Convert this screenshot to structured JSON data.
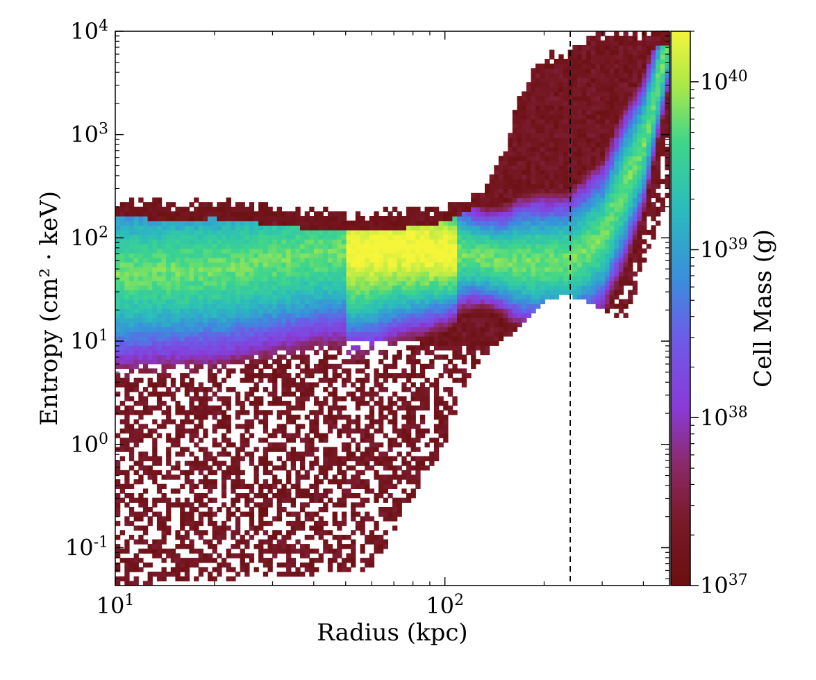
{
  "chart_data": {
    "type": "heatmap",
    "title": "",
    "xlabel": "Radius  (kpc)",
    "ylabel": "Entropy  (cm² · keV)",
    "colorbar_label": "Cell Mass  (g)",
    "x_scale": "log",
    "y_scale": "log",
    "xlim": [
      10,
      480
    ],
    "ylim": [
      0.043,
      10000
    ],
    "x_ticks": [
      {
        "value": 10,
        "base": "10",
        "exp": "1"
      },
      {
        "value": 100,
        "base": "10",
        "exp": "2"
      }
    ],
    "y_ticks": [
      {
        "value": 0.1,
        "base": "10",
        "exp": "-1"
      },
      {
        "value": 1,
        "base": "10",
        "exp": "0"
      },
      {
        "value": 10,
        "base": "10",
        "exp": "1"
      },
      {
        "value": 100,
        "base": "10",
        "exp": "2"
      },
      {
        "value": 1000,
        "base": "10",
        "exp": "3"
      },
      {
        "value": 10000,
        "base": "10",
        "exp": "4"
      }
    ],
    "colorbar": {
      "scale": "log",
      "range": [
        1e+37,
        2e+40
      ],
      "colormap": "viridis-like (dark red → purple → blue → green → yellow)",
      "ticks": [
        {
          "value": 1e+37,
          "base": "10",
          "exp": "37"
        },
        {
          "value": 1e+38,
          "base": "10",
          "exp": "38"
        },
        {
          "value": 1e+39,
          "base": "10",
          "exp": "39"
        },
        {
          "value": 1e+40,
          "base": "10",
          "exp": "40"
        }
      ]
    },
    "reference_line": {
      "x": 240,
      "style": "dashed",
      "color": "#000000"
    },
    "distribution": {
      "upper_envelope": [
        [
          10,
          230
        ],
        [
          15,
          210
        ],
        [
          20,
          220
        ],
        [
          30,
          190
        ],
        [
          50,
          160
        ],
        [
          70,
          170
        ],
        [
          100,
          200
        ],
        [
          130,
          300
        ],
        [
          150,
          600
        ],
        [
          170,
          2500
        ],
        [
          190,
          5000
        ],
        [
          230,
          6000
        ],
        [
          270,
          9000
        ],
        [
          480,
          10000
        ]
      ],
      "lower_envelope": [
        [
          10,
          0.043
        ],
        [
          60,
          0.06
        ],
        [
          80,
          0.3
        ],
        [
          100,
          1.0
        ],
        [
          120,
          5
        ],
        [
          140,
          9
        ],
        [
          160,
          12
        ],
        [
          200,
          25
        ],
        [
          240,
          28
        ],
        [
          300,
          20
        ],
        [
          350,
          16
        ],
        [
          380,
          30
        ],
        [
          480,
          300
        ]
      ],
      "ridge": [
        [
          10,
          45
        ],
        [
          20,
          50
        ],
        [
          40,
          70
        ],
        [
          70,
          85
        ],
        [
          100,
          75
        ],
        [
          150,
          60
        ],
        [
          200,
          58
        ],
        [
          240,
          60
        ],
        [
          300,
          100
        ],
        [
          400,
          800
        ],
        [
          480,
          9000
        ]
      ],
      "peak_mass_region": [
        [
          50,
          70
        ],
        [
          110,
          60
        ]
      ]
    },
    "colors": {
      "low": "#6b0f0f",
      "mid_low": "#8a3ad8",
      "mid": "#3b8ddd",
      "mid_high": "#26c79a",
      "high": "#f5f53a"
    }
  }
}
